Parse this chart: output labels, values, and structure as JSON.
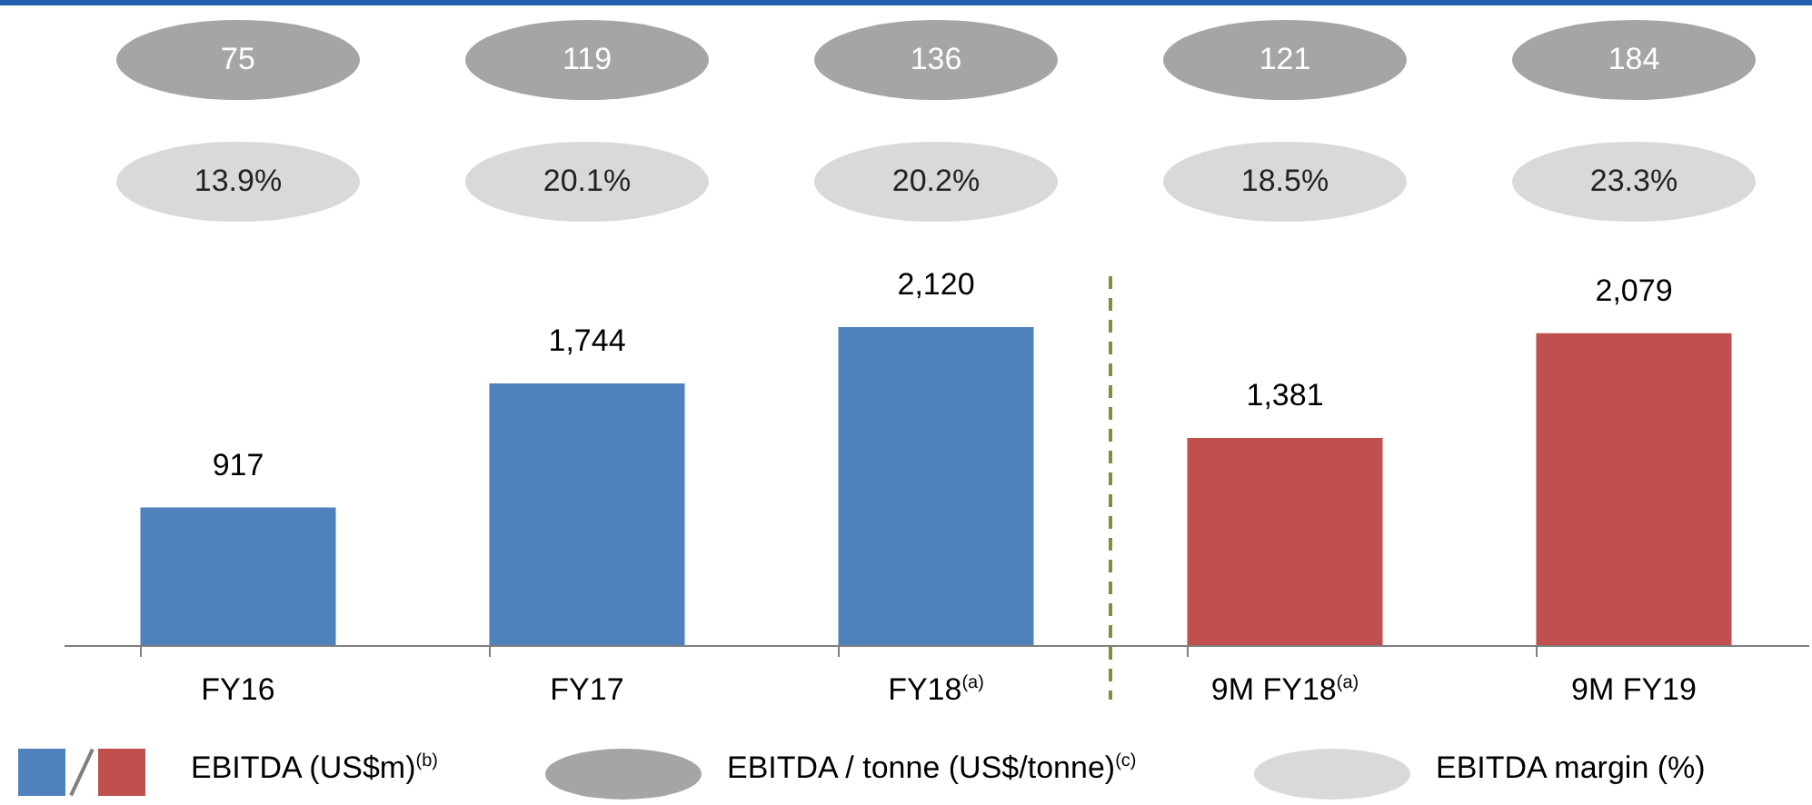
{
  "chart_data": {
    "type": "bar",
    "categories": [
      "FY16",
      "FY17",
      "FY18$^{(a)}$",
      "9M FY18$^{(a)}$",
      "9M FY19"
    ],
    "series": [
      {
        "name": "EBITDA (US$m)$^{(b)}$",
        "colors": [
          "#4f81bd",
          "#4f81bd",
          "#4f81bd",
          "#c0504d",
          "#c0504d"
        ],
        "values": [
          917,
          1744,
          2120,
          1381,
          2079
        ],
        "value_labels": [
          "917",
          "1,744",
          "2,120",
          "1,381",
          "2,079"
        ]
      }
    ],
    "legend": "bottom",
    "ref_lines": [
      {
        "axis": "x",
        "value": "9M FY18$^{(a)}$",
        "color": "#77933c",
        "line_style": "dashed"
      }
    ],
    "annotations": [
      "75",
      "119",
      "136",
      "121",
      "184",
      "13.9%",
      "20.1%",
      "20.2%",
      "18.5%",
      "23.3%",
      "EBITDA / tonne (US$/tonne)$^{(c)}$",
      "EBITDA margin (%)"
    ]
  }
}
